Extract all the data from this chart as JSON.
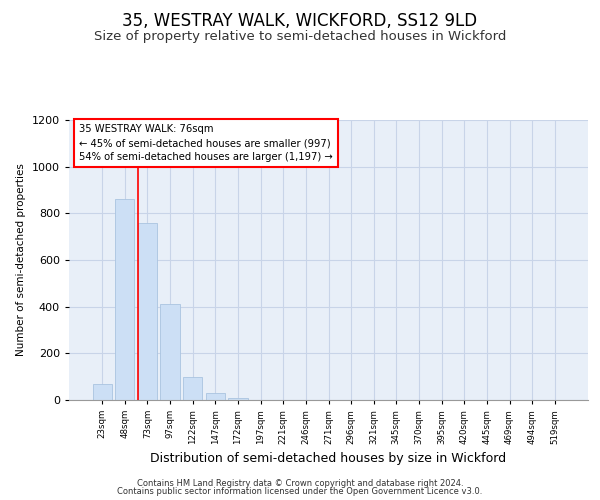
{
  "title": "35, WESTRAY WALK, WICKFORD, SS12 9LD",
  "subtitle": "Size of property relative to semi-detached houses in Wickford",
  "xlabel": "Distribution of semi-detached houses by size in Wickford",
  "ylabel": "Number of semi-detached properties",
  "footer_line1": "Contains HM Land Registry data © Crown copyright and database right 2024.",
  "footer_line2": "Contains public sector information licensed under the Open Government Licence v3.0.",
  "categories": [
    "23sqm",
    "48sqm",
    "73sqm",
    "97sqm",
    "122sqm",
    "147sqm",
    "172sqm",
    "197sqm",
    "221sqm",
    "246sqm",
    "271sqm",
    "296sqm",
    "321sqm",
    "345sqm",
    "370sqm",
    "395sqm",
    "420sqm",
    "445sqm",
    "469sqm",
    "494sqm",
    "519sqm"
  ],
  "values": [
    70,
    860,
    760,
    410,
    100,
    28,
    10,
    0,
    0,
    0,
    0,
    0,
    0,
    0,
    0,
    0,
    0,
    0,
    0,
    0,
    0
  ],
  "bar_color": "#ccdff5",
  "bar_edgecolor": "#aac4e0",
  "property_label": "35 WESTRAY WALK: 76sqm",
  "pct_smaller": "45% of semi-detached houses are smaller (997)",
  "pct_larger": "54% of semi-detached houses are larger (1,197)",
  "ylim": [
    0,
    1200
  ],
  "yticks": [
    0,
    200,
    400,
    600,
    800,
    1000,
    1200
  ],
  "grid_color": "#c8d4e8",
  "plot_bg_color": "#e8eff8",
  "fig_bg_color": "#ffffff",
  "title_fontsize": 12,
  "subtitle_fontsize": 9.5,
  "red_line_bar_index": 2
}
